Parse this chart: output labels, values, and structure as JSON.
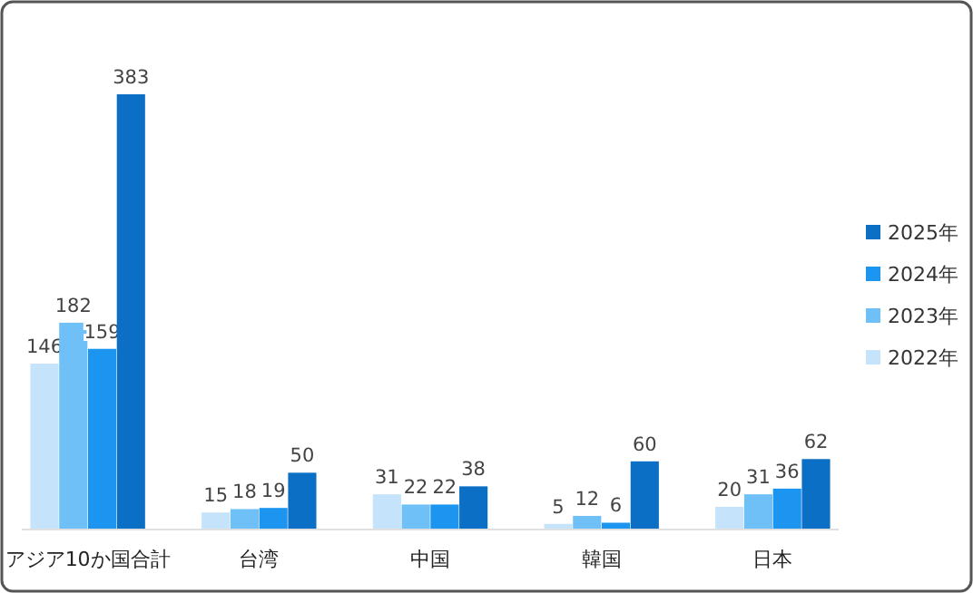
{
  "chart_data": {
    "type": "bar",
    "categories": [
      "アジア10か国合計",
      "台湾",
      "中国",
      "韓国",
      "日本"
    ],
    "series": [
      {
        "name": "2022年",
        "color": "#c5e3fa",
        "values": [
          146,
          15,
          31,
          5,
          20
        ]
      },
      {
        "name": "2023年",
        "color": "#6fc0f6",
        "values": [
          182,
          18,
          22,
          12,
          31
        ]
      },
      {
        "name": "2024年",
        "color": "#1c95f0",
        "values": [
          159,
          19,
          22,
          6,
          36
        ]
      },
      {
        "name": "2025年",
        "color": "#0b6fc5",
        "values": [
          383,
          50,
          38,
          60,
          62
        ]
      }
    ],
    "data_labels": true,
    "legend": "right",
    "grid": false
  }
}
